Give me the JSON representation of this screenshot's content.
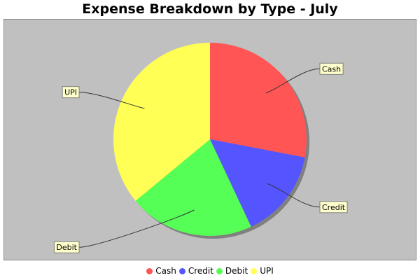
{
  "chart_data": {
    "type": "pie",
    "title": "Expense Breakdown by Type - July",
    "categories": [
      "Cash",
      "Credit",
      "Debit",
      "UPI"
    ],
    "values": [
      28,
      15,
      21,
      36
    ],
    "colors": [
      "#ff5555",
      "#5555ff",
      "#55ff55",
      "#ffff55"
    ],
    "legend_position": "bottom",
    "plot_background": "#c0c0c0"
  }
}
